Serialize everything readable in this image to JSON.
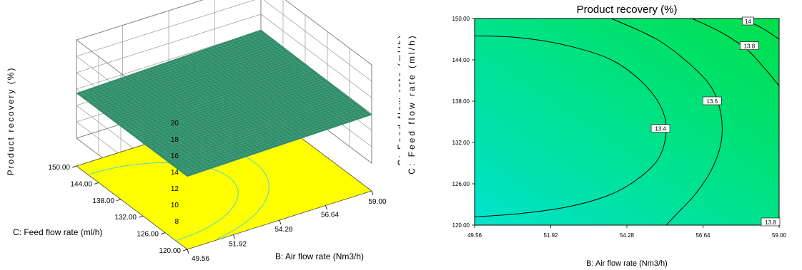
{
  "chart_data": [
    {
      "type": "surface3d",
      "title": "",
      "zlabel": "Product recovery (%)",
      "xlabel": "B: Air flow rate (Nm3/h)",
      "ylabel": "C: Feed flow rate (ml/h)",
      "x_ticks": [
        "49.56",
        "51.92",
        "54.28",
        "56.64",
        "59.00"
      ],
      "y_ticks": [
        "120.00",
        "126.00",
        "132.00",
        "138.00",
        "144.00",
        "150.00"
      ],
      "z_ticks": [
        "8",
        "10",
        "12",
        "14",
        "16",
        "18",
        "20"
      ],
      "zlim": [
        8,
        20
      ],
      "surface_corners": {
        "x49.56_y120": 13.5,
        "x49.56_y150": 13.5,
        "x59_y120": 13.9,
        "x59_y150": 14.1
      },
      "surface_color": "#2e8b6a",
      "floor_color": "#ffff00"
    },
    {
      "type": "contour",
      "title": "Product recovery (%)",
      "xlabel": "B: Air flow rate (Nm3/h)",
      "ylabel": "C: Feed flow rate (ml/h)",
      "x_ticks": [
        "49.56",
        "51.92",
        "54.28",
        "56.64",
        "59.00"
      ],
      "y_ticks": [
        "120.00",
        "126.00",
        "132.00",
        "138.00",
        "144.00",
        "150.00"
      ],
      "xlim": [
        49.56,
        59.0
      ],
      "ylim": [
        120,
        150
      ],
      "contour_labels": [
        "13.4",
        "13.6",
        "13.8",
        "14",
        "13.8"
      ],
      "contours": [
        {
          "level": 13.4,
          "points": [
            [
              49.56,
              147.5
            ],
            [
              51.0,
              147.2
            ],
            [
              52.5,
              146.0
            ],
            [
              53.8,
              144.0
            ],
            [
              54.7,
              141.0
            ],
            [
              55.3,
              137.5
            ],
            [
              55.5,
              134.0
            ],
            [
              55.3,
              130.0
            ],
            [
              54.7,
              127.0
            ],
            [
              53.8,
              124.5
            ],
            [
              52.5,
              122.7
            ],
            [
              51.0,
              121.7
            ],
            [
              49.56,
              121.2
            ]
          ]
        },
        {
          "level": 13.6,
          "points": [
            [
              53.8,
              150.0
            ],
            [
              55.2,
              147.0
            ],
            [
              56.2,
              143.5
            ],
            [
              56.9,
              140.0
            ],
            [
              57.2,
              136.0
            ],
            [
              57.2,
              132.0
            ],
            [
              56.9,
              128.0
            ],
            [
              56.4,
              124.5
            ],
            [
              55.8,
              121.5
            ],
            [
              55.5,
              120.0
            ]
          ]
        },
        {
          "level": 13.8,
          "points": [
            [
              56.3,
              150.0
            ],
            [
              57.2,
              148.0
            ],
            [
              58.0,
              145.5
            ],
            [
              58.6,
              142.5
            ],
            [
              59.0,
              140.2
            ]
          ]
        },
        {
          "level": 14.0,
          "points": [
            [
              57.8,
              150.0
            ],
            [
              58.4,
              148.8
            ],
            [
              59.0,
              147.0
            ]
          ]
        }
      ],
      "fill_low": "#00e3cc",
      "fill_high": "#00e04a"
    }
  ]
}
